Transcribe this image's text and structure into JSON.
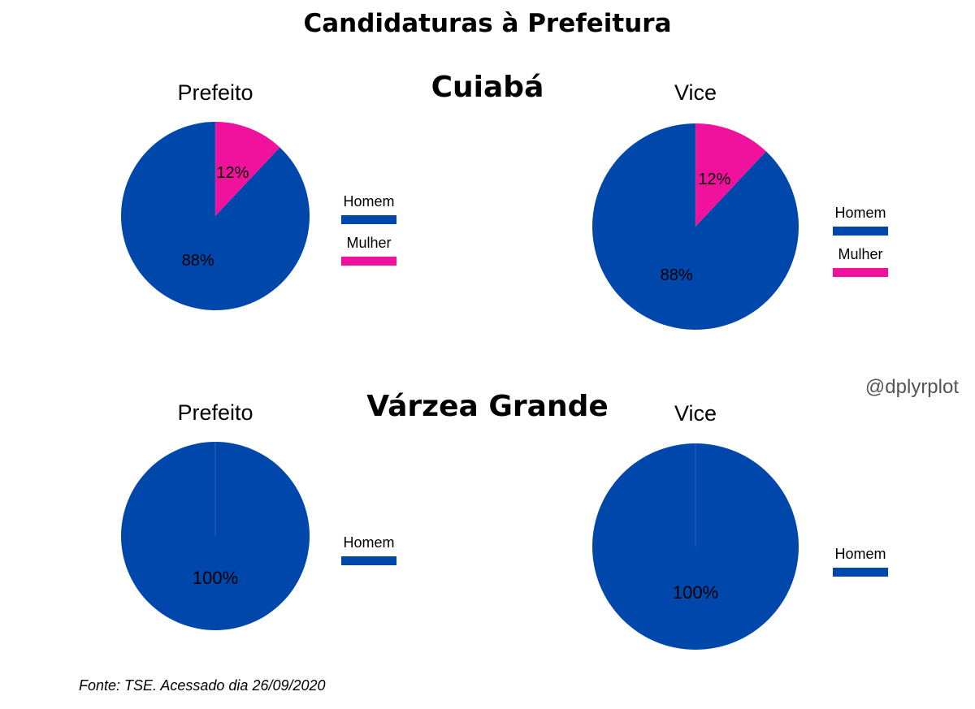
{
  "title": "Candidaturas à Prefeitura",
  "sections": [
    {
      "name": "Cuiabá"
    },
    {
      "name": "Várzea Grande"
    }
  ],
  "watermark": "@dplyrplot",
  "source": "Fonte: TSE. Acessado dia 26/09/2020",
  "colors": {
    "Homem": "#0047AB",
    "Mulher": "#F0119C",
    "background": "#FFFFFF",
    "text": "#000000",
    "watermark": "#555555"
  },
  "chart_data": [
    {
      "type": "pie",
      "city": "Cuiabá",
      "title": "Prefeito",
      "slices": [
        {
          "label": "Homem",
          "value": 88,
          "text": "88%"
        },
        {
          "label": "Mulher",
          "value": 12,
          "text": "12%"
        }
      ],
      "legend": [
        "Homem",
        "Mulher"
      ]
    },
    {
      "type": "pie",
      "city": "Cuiabá",
      "title": "Vice",
      "slices": [
        {
          "label": "Homem",
          "value": 88,
          "text": "88%"
        },
        {
          "label": "Mulher",
          "value": 12,
          "text": "12%"
        }
      ],
      "legend": [
        "Homem",
        "Mulher"
      ]
    },
    {
      "type": "pie",
      "city": "Várzea Grande",
      "title": "Prefeito",
      "slices": [
        {
          "label": "Homem",
          "value": 100,
          "text": "100%"
        }
      ],
      "legend": [
        "Homem"
      ]
    },
    {
      "type": "pie",
      "city": "Várzea Grande",
      "title": "Vice",
      "slices": [
        {
          "label": "Homem",
          "value": 100,
          "text": "100%"
        }
      ],
      "legend": [
        "Homem"
      ]
    }
  ]
}
